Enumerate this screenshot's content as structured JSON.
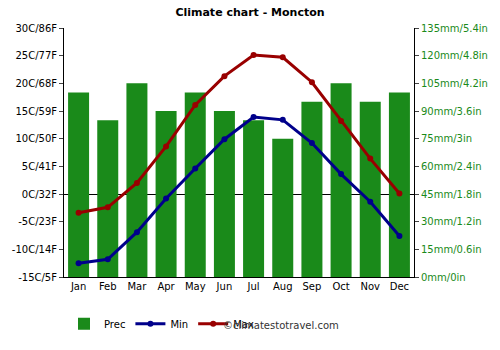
{
  "chart_data": {
    "type": "bar",
    "title": "Climate chart - Moncton",
    "categories": [
      "Jan",
      "Feb",
      "Mar",
      "Apr",
      "May",
      "Jun",
      "Jul",
      "Aug",
      "Sep",
      "Oct",
      "Nov",
      "Dec"
    ],
    "series": [
      {
        "name": "Prec",
        "type": "bar",
        "axis": "y2",
        "color": "#1a8a1a",
        "values": [
          100,
          85,
          105,
          90,
          100,
          90,
          85,
          75,
          95,
          105,
          95,
          100
        ]
      },
      {
        "name": "Min",
        "type": "line",
        "color": "#00008b",
        "marker": "circle",
        "values": [
          -12.5,
          -11.8,
          -6.9,
          -0.8,
          4.6,
          9.9,
          13.9,
          13.4,
          9.2,
          3.6,
          -1.4,
          -7.6
        ]
      },
      {
        "name": "Max",
        "type": "line",
        "color": "#990000",
        "marker": "circle",
        "values": [
          -3.4,
          -2.4,
          2,
          8.6,
          16.1,
          21.3,
          25.1,
          24.7,
          20.2,
          13.2,
          6.4,
          0.1
        ]
      }
    ],
    "ylim": [
      -15,
      30
    ],
    "yticks": [
      {
        "value": -15,
        "label": "-15C/5F"
      },
      {
        "value": -10,
        "label": "-10C/14F"
      },
      {
        "value": -5,
        "label": "-5C/23F"
      },
      {
        "value": 0,
        "label": "0C/32F"
      },
      {
        "value": 5,
        "label": "5C/41F"
      },
      {
        "value": 10,
        "label": "10C/50F"
      },
      {
        "value": 15,
        "label": "15C/59F"
      },
      {
        "value": 20,
        "label": "20C/68F"
      },
      {
        "value": 25,
        "label": "25C/77F"
      },
      {
        "value": 30,
        "label": "30C/86F"
      }
    ],
    "y2lim": [
      0,
      135
    ],
    "y2ticks": [
      {
        "value": 0,
        "label": "0mm/0in"
      },
      {
        "value": 15,
        "label": "15mm/0.6in"
      },
      {
        "value": 30,
        "label": "30mm/1.2in"
      },
      {
        "value": 45,
        "label": "45mm/1.8in"
      },
      {
        "value": 60,
        "label": "60mm/2.4in"
      },
      {
        "value": 75,
        "label": "75mm/3in"
      },
      {
        "value": 90,
        "label": "90mm/3.6in"
      },
      {
        "value": 105,
        "label": "105mm/4.2in"
      },
      {
        "value": 120,
        "label": "120mm/4.8in"
      },
      {
        "value": 135,
        "label": "135mm/5.4in"
      }
    ],
    "grid": false,
    "legend": "bottom",
    "annotations": [
      "©climatestotravel.com"
    ]
  }
}
